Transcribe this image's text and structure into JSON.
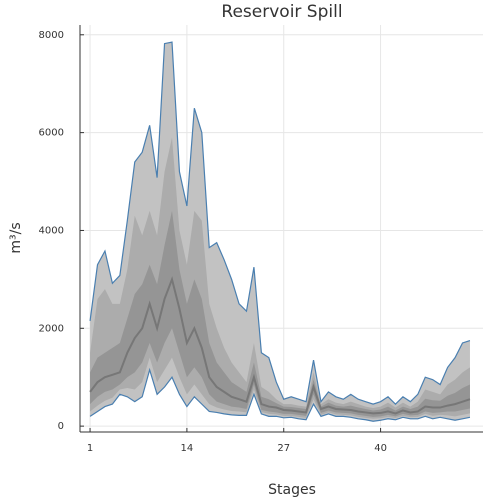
{
  "chart_data": {
    "type": "fan",
    "title": "Reservoir Spill",
    "x_label": "Stages",
    "y_label": "m³/s",
    "x": [
      1,
      2,
      3,
      4,
      5,
      6,
      7,
      8,
      9,
      10,
      11,
      12,
      13,
      14,
      15,
      16,
      17,
      18,
      19,
      20,
      21,
      22,
      23,
      24,
      25,
      26,
      27,
      28,
      29,
      30,
      31,
      32,
      33,
      34,
      35,
      36,
      37,
      38,
      39,
      40,
      41,
      42,
      43,
      44,
      45,
      46,
      47,
      48,
      49,
      50,
      51,
      52
    ],
    "xlim": [
      -0.35,
      53.75
    ],
    "xticks": [
      1,
      14,
      27,
      40
    ],
    "ylim": [
      -120,
      8200
    ],
    "yticks": [
      0,
      2000,
      4000,
      6000,
      8000
    ],
    "grid": true,
    "edge_color": "#4a7fb0",
    "bands": [
      {
        "color": "#c2c2c2",
        "lower": [
          200,
          300,
          400,
          450,
          650,
          600,
          500,
          600,
          1150,
          650,
          800,
          1000,
          650,
          400,
          600,
          450,
          300,
          280,
          250,
          230,
          220,
          220,
          650,
          250,
          200,
          200,
          170,
          180,
          150,
          130,
          450,
          200,
          250,
          200,
          200,
          180,
          150,
          130,
          100,
          120,
          150,
          130,
          180,
          150,
          150,
          200,
          150,
          180,
          150,
          120,
          150,
          180
        ],
        "upper": [
          2150,
          3300,
          3580,
          2920,
          3080,
          4200,
          5400,
          5600,
          6150,
          5080,
          7820,
          7850,
          5200,
          4500,
          6500,
          6000,
          3650,
          3750,
          3400,
          3000,
          2500,
          2350,
          3250,
          1500,
          1400,
          900,
          550,
          600,
          550,
          500,
          1350,
          500,
          700,
          600,
          550,
          650,
          550,
          500,
          450,
          500,
          600,
          450,
          600,
          500,
          650,
          1000,
          950,
          850,
          1200,
          1400,
          1700,
          1750
        ]
      },
      {
        "color": "#acacac",
        "lower": [
          300,
          420,
          520,
          580,
          750,
          780,
          750,
          900,
          1400,
          900,
          1150,
          1400,
          1000,
          650,
          850,
          650,
          450,
          380,
          340,
          310,
          300,
          280,
          750,
          290,
          250,
          240,
          210,
          210,
          190,
          170,
          550,
          230,
          280,
          240,
          230,
          220,
          190,
          170,
          150,
          160,
          190,
          165,
          210,
          185,
          190,
          250,
          210,
          230,
          220,
          200,
          230,
          260
        ],
        "upper": [
          1500,
          2600,
          2800,
          2500,
          2500,
          3200,
          4300,
          3900,
          4400,
          3900,
          5200,
          5900,
          4000,
          3300,
          4400,
          4200,
          2500,
          2000,
          1600,
          1300,
          1100,
          900,
          1700,
          800,
          700,
          550,
          450,
          450,
          420,
          400,
          1100,
          450,
          550,
          480,
          450,
          500,
          450,
          400,
          370,
          400,
          480,
          380,
          480,
          400,
          500,
          750,
          700,
          650,
          850,
          950,
          1100,
          1200
        ]
      },
      {
        "color": "#959595",
        "lower": [
          450,
          600,
          700,
          750,
          850,
          1000,
          1100,
          1300,
          1700,
          1300,
          1700,
          2000,
          1500,
          1000,
          1200,
          1000,
          650,
          500,
          450,
          400,
          380,
          350,
          850,
          330,
          300,
          280,
          250,
          250,
          230,
          210,
          650,
          270,
          320,
          280,
          270,
          260,
          230,
          210,
          190,
          200,
          230,
          200,
          250,
          220,
          230,
          300,
          270,
          280,
          300,
          300,
          330,
          360
        ],
        "upper": [
          1100,
          1400,
          1500,
          1600,
          1700,
          2200,
          2700,
          2900,
          3300,
          2900,
          3700,
          4400,
          3200,
          2500,
          3000,
          2600,
          1700,
          1300,
          1100,
          900,
          800,
          700,
          1300,
          600,
          550,
          470,
          400,
          390,
          370,
          350,
          950,
          400,
          480,
          420,
          400,
          420,
          380,
          350,
          320,
          340,
          400,
          320,
          400,
          350,
          400,
          560,
          530,
          520,
          620,
          680,
          780,
          850
        ]
      }
    ],
    "median": {
      "color": "#777777",
      "values": [
        700,
        900,
        1000,
        1050,
        1100,
        1500,
        1800,
        2000,
        2500,
        2000,
        2600,
        3000,
        2400,
        1700,
        2000,
        1600,
        1000,
        800,
        700,
        600,
        550,
        500,
        1000,
        450,
        400,
        380,
        330,
        320,
        300,
        280,
        800,
        350,
        400,
        350,
        340,
        330,
        300,
        280,
        260,
        270,
        300,
        260,
        320,
        280,
        300,
        400,
        380,
        380,
        420,
        450,
        500,
        550
      ]
    }
  }
}
